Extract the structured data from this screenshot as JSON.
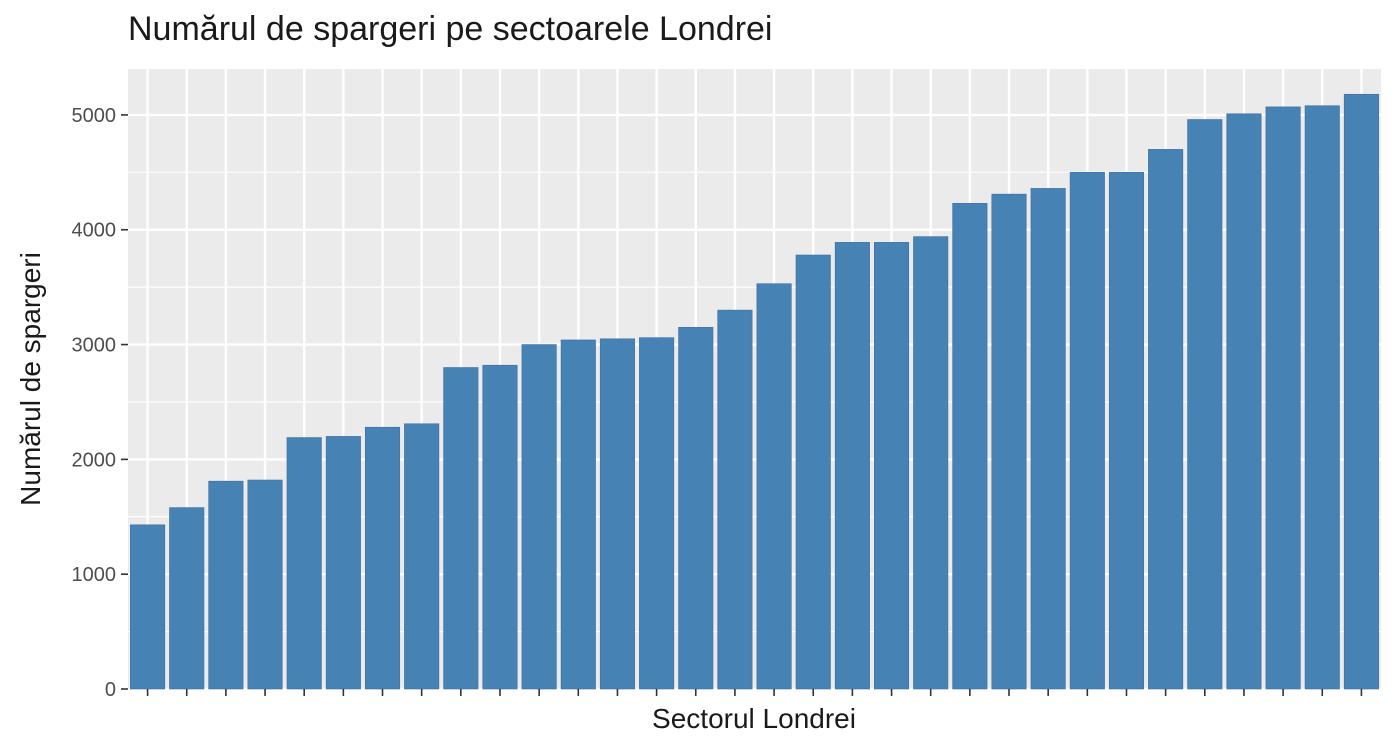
{
  "chart_data": {
    "type": "bar",
    "title": "Numărul de spargeri pe sectoarele Londrei",
    "xlabel": "Sectorul Londrei",
    "ylabel": "Numărul de spargeri",
    "ylim": [
      0,
      5400
    ],
    "yticks": [
      0,
      1000,
      2000,
      3000,
      4000,
      5000
    ],
    "grid": true,
    "bar_color": "#4682B4",
    "panel_color": "#EBEBEB",
    "grid_color": "#FFFFFF",
    "tick_color": "#333333",
    "values": [
      1430,
      1580,
      1810,
      1820,
      2190,
      2200,
      2280,
      2310,
      2800,
      2820,
      3000,
      3040,
      3050,
      3060,
      3150,
      3300,
      3530,
      3780,
      3890,
      3890,
      3940,
      4230,
      4310,
      4360,
      4500,
      4500,
      4700,
      4960,
      5010,
      5070,
      5080,
      5180
    ]
  }
}
